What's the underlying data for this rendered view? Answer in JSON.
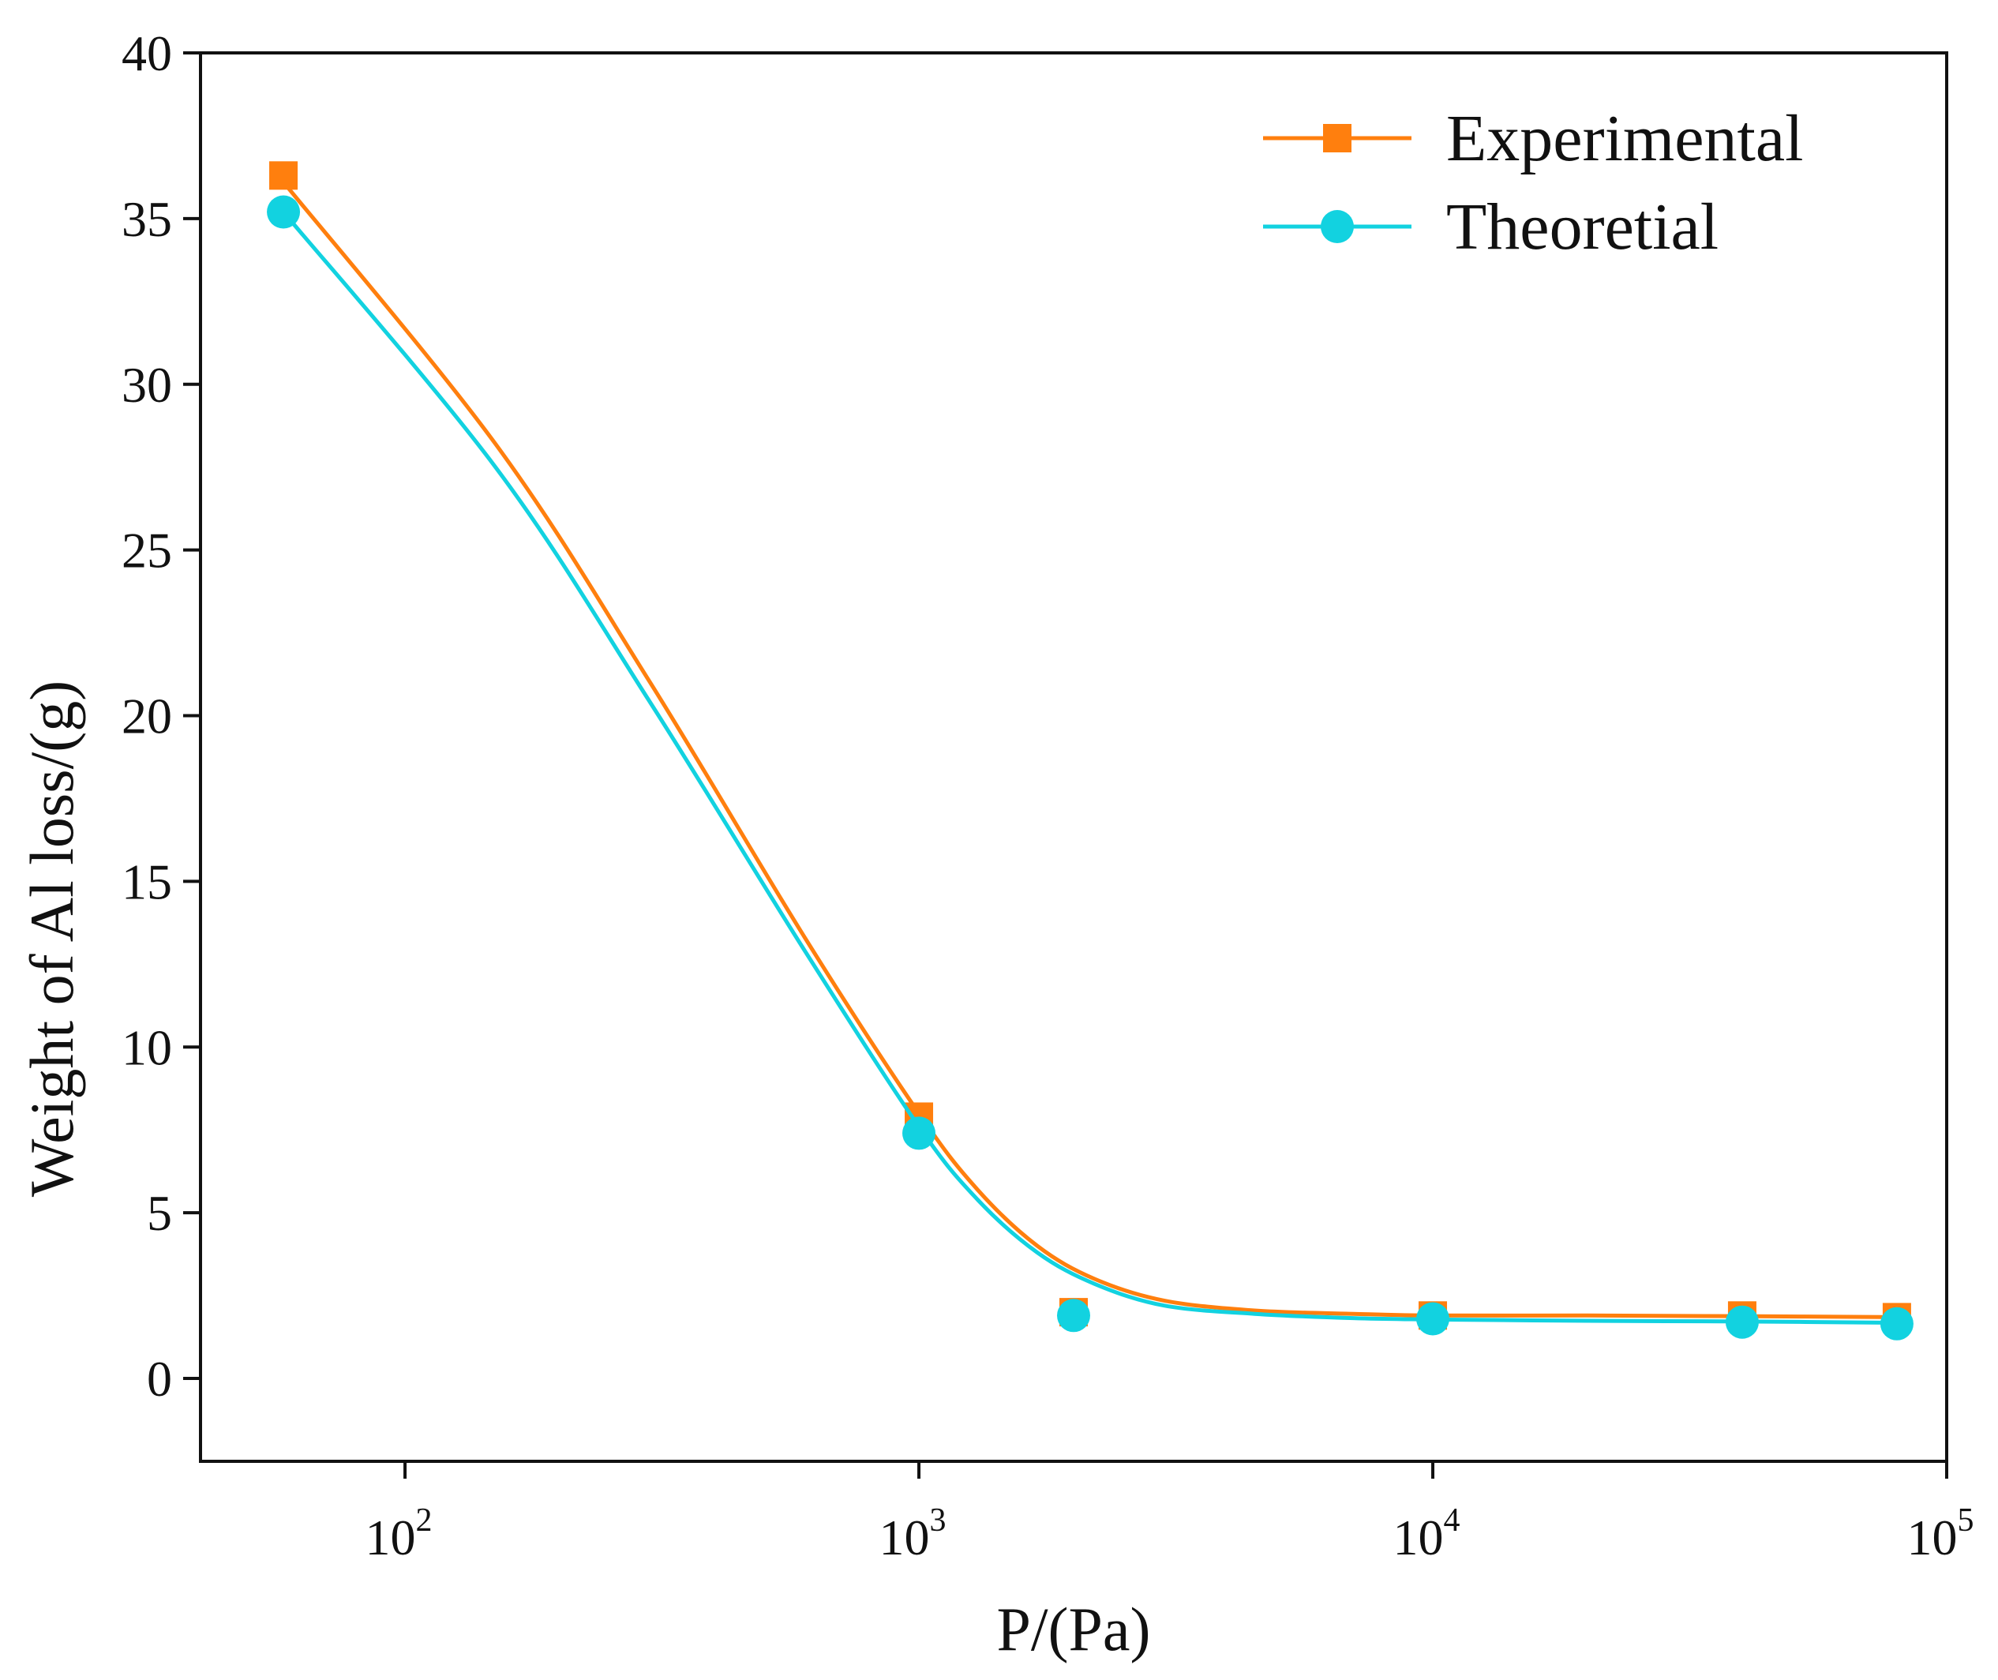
{
  "chart_data": {
    "type": "line",
    "title": "",
    "xlabel": "P/(Pa)",
    "ylabel": "Weight of Al loss/(g)",
    "xscale": "log",
    "xlim": [
      40,
      100000
    ],
    "ylim": [
      -2.5,
      40
    ],
    "xticks": [
      {
        "value": 100,
        "base": "10",
        "exp": "2"
      },
      {
        "value": 1000,
        "base": "10",
        "exp": "3"
      },
      {
        "value": 10000,
        "base": "10",
        "exp": "4"
      },
      {
        "value": 100000,
        "base": "10",
        "exp": "5"
      }
    ],
    "yticks": [
      0,
      5,
      10,
      15,
      20,
      25,
      30,
      35,
      40
    ],
    "legend_position": "top-right",
    "series": [
      {
        "name": "Experimental",
        "color": "#FF7F0E",
        "marker": "square",
        "x": [
          58,
          1000,
          2000,
          10000,
          40000,
          80000
        ],
        "y": [
          36.3,
          7.9,
          2.0,
          1.9,
          1.9,
          1.85
        ],
        "curve_x": [
          58,
          150,
          300,
          600,
          1000,
          1300,
          1700,
          2200,
          3000,
          4500,
          7000,
          10000,
          20000,
          40000,
          80000
        ],
        "curve_y": [
          36.1,
          28.2,
          21.0,
          13.3,
          8.0,
          5.7,
          4.0,
          3.0,
          2.35,
          2.05,
          1.95,
          1.9,
          1.9,
          1.88,
          1.85
        ]
      },
      {
        "name": "Theoretial",
        "color": "#12D2E0",
        "marker": "circle",
        "x": [
          58,
          1000,
          2000,
          10000,
          40000,
          80000
        ],
        "y": [
          35.2,
          7.4,
          1.9,
          1.8,
          1.7,
          1.65
        ],
        "curve_x": [
          58,
          150,
          300,
          600,
          1000,
          1300,
          1700,
          2200,
          3000,
          4500,
          7000,
          10000,
          20000,
          40000,
          80000
        ],
        "curve_y": [
          35.2,
          27.5,
          20.4,
          12.9,
          7.6,
          5.4,
          3.8,
          2.85,
          2.2,
          1.95,
          1.82,
          1.78,
          1.74,
          1.72,
          1.68
        ]
      }
    ]
  }
}
